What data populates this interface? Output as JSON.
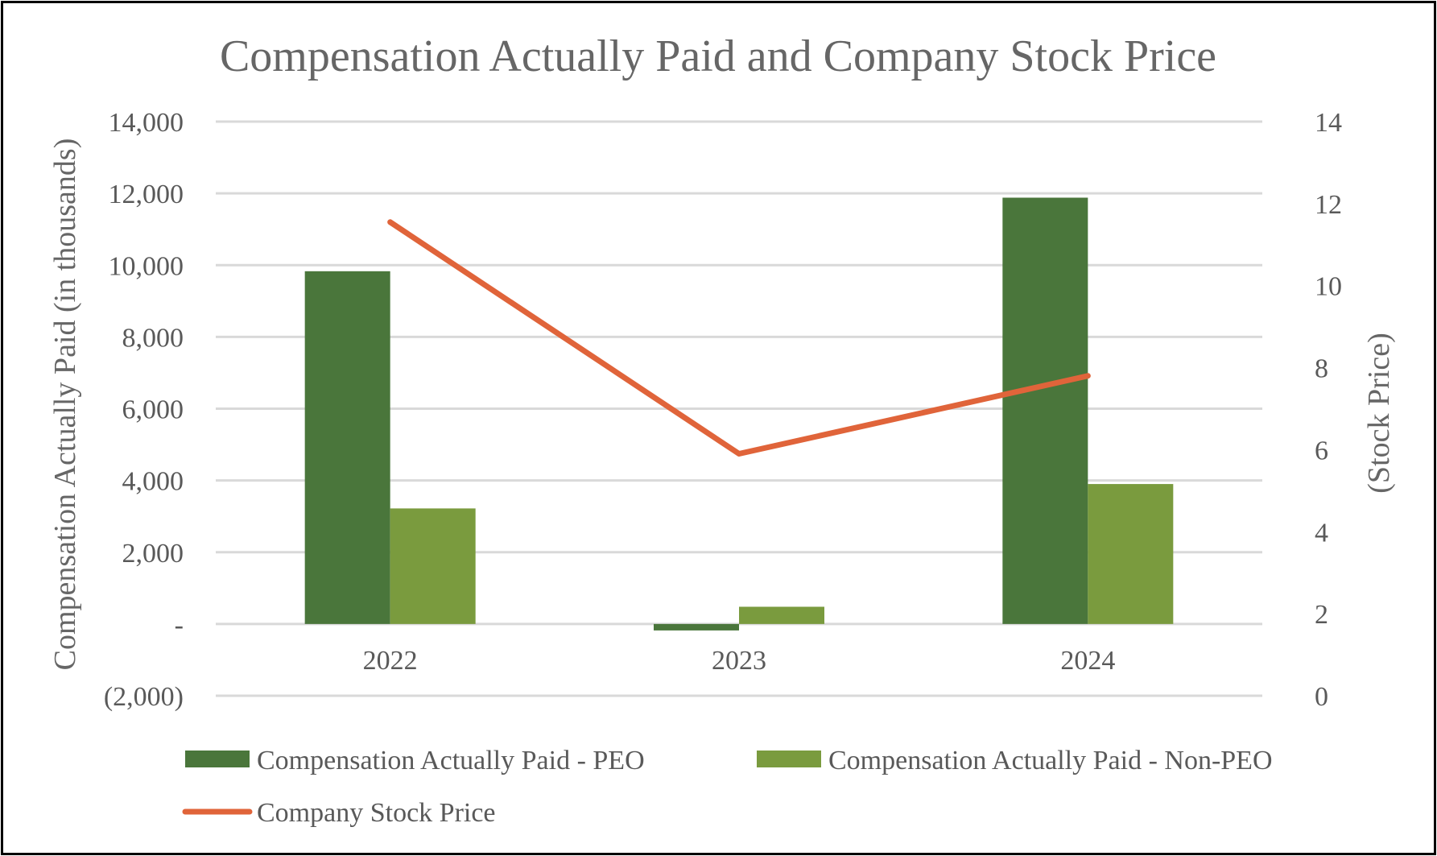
{
  "chart_data": {
    "type": "bar",
    "title": "Compensation Actually Paid and Company Stock Price",
    "categories": [
      "2022",
      "2023",
      "2024"
    ],
    "series": [
      {
        "name": "Compensation Actually Paid - PEO",
        "type": "bar",
        "axis": "left",
        "color": "#4a763b",
        "values": [
          9830,
          -180,
          11880
        ]
      },
      {
        "name": "Compensation Actually Paid - Non-PEO",
        "type": "bar",
        "axis": "left",
        "color": "#7a9b3e",
        "values": [
          3220,
          480,
          3900
        ]
      },
      {
        "name": "Company Stock Price",
        "type": "line",
        "axis": "right",
        "color": "#e0643a",
        "values": [
          11.55,
          5.9,
          7.8
        ]
      }
    ],
    "ylabel": "Compensation Actually Paid (in thousands)",
    "y2label": "(Stock Price)",
    "ylim": [
      -2000,
      14000
    ],
    "y2lim": [
      0,
      14
    ],
    "yticks": [
      {
        "value": 14000,
        "label": "14,000"
      },
      {
        "value": 12000,
        "label": "12,000"
      },
      {
        "value": 10000,
        "label": "10,000"
      },
      {
        "value": 8000,
        "label": "8,000"
      },
      {
        "value": 6000,
        "label": "6,000"
      },
      {
        "value": 4000,
        "label": "4,000"
      },
      {
        "value": 2000,
        "label": "2,000"
      },
      {
        "value": 0,
        "label": "-"
      },
      {
        "value": -2000,
        "label": "(2,000)"
      }
    ],
    "y2ticks": [
      {
        "value": 14,
        "label": "14"
      },
      {
        "value": 12,
        "label": "12"
      },
      {
        "value": 10,
        "label": "10"
      },
      {
        "value": 8,
        "label": "8"
      },
      {
        "value": 6,
        "label": "6"
      },
      {
        "value": 4,
        "label": "4"
      },
      {
        "value": 2,
        "label": "2"
      },
      {
        "value": 0,
        "label": "0"
      }
    ],
    "grid": true,
    "legend": "bottom"
  }
}
